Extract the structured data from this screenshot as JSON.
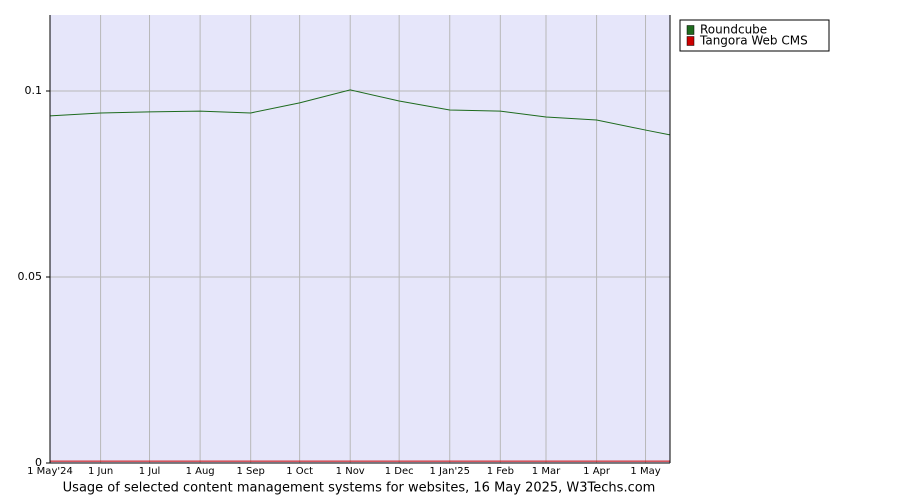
{
  "chart_data": {
    "type": "line",
    "title": "Usage of selected content management systems for websites, 16 May 2025, W3Techs.com",
    "categories": [
      "1 May'24",
      "1 Jun",
      "1 Jul",
      "1 Aug",
      "1 Sep",
      "1 Oct",
      "1 Nov",
      "1 Dec",
      "1 Jan'25",
      "1 Feb",
      "1 Mar",
      "1 Apr",
      "1 May",
      null
    ],
    "series": [
      {
        "name": "Roundcube",
        "color": "#1e6b1e",
        "values": [
          0.0933,
          0.0941,
          0.0944,
          0.0946,
          0.0941,
          0.0968,
          0.1003,
          0.0973,
          0.0949,
          0.0946,
          0.093,
          0.0922,
          0.0895,
          0.0882
        ]
      },
      {
        "name": "Tangora Web CMS",
        "color": "#cc0000",
        "values": [
          0.0005,
          0.0005,
          0.0005,
          0.0005,
          0.0005,
          0.0005,
          0.0005,
          0.0005,
          0.0005,
          0.0005,
          0.0005,
          0.0005,
          0.0005,
          0.0005
        ]
      }
    ],
    "ylim": [
      0,
      0.12
    ],
    "yticks": [
      0,
      0.05,
      0.1
    ],
    "grid": true
  }
}
